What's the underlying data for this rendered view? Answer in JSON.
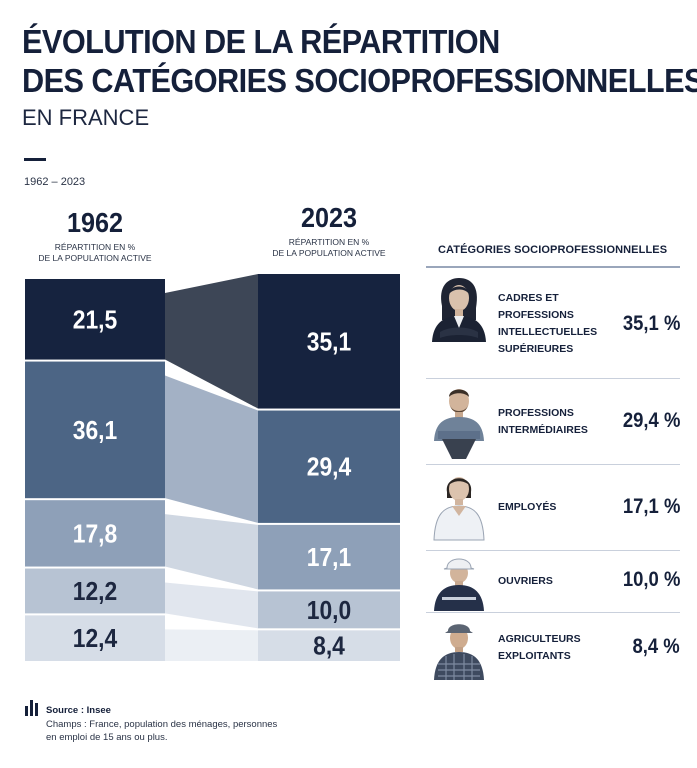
{
  "title": {
    "line1": "ÉVOLUTION DE LA RÉPARTITION",
    "line2": "DES CATÉGORIES SOCIOPROFESSIONNELLES",
    "subtitle": "EN FRANCE",
    "period": "1962 – 2023"
  },
  "columns": {
    "left": {
      "year": "1962",
      "sub1": "RÉPARTITION EN %",
      "sub2": "DE LA POPULATION ACTIVE"
    },
    "right": {
      "year": "2023",
      "sub1": "RÉPARTITION EN %",
      "sub2": "DE LA POPULATION ACTIVE"
    }
  },
  "chart_data": {
    "type": "bar",
    "stacked": true,
    "categories": [
      "1962",
      "2023"
    ],
    "series": [
      {
        "name": "Cadres et professions intellectuelles supérieures",
        "values": [
          21.5,
          35.1
        ],
        "labels": [
          "21,5",
          "35,1"
        ],
        "color": "#16233f",
        "ribbon": "#3d4656",
        "text_color": "#ffffff"
      },
      {
        "name": "Professions intermédiaires",
        "values": [
          36.1,
          29.4
        ],
        "labels": [
          "36,1",
          "29,4"
        ],
        "color": "#4c6585",
        "ribbon": "#a3b1c5",
        "text_color": "#ffffff"
      },
      {
        "name": "Employés",
        "values": [
          17.8,
          17.1
        ],
        "labels": [
          "17,8",
          "17,1"
        ],
        "color": "#8ea0b8",
        "ribbon": "#cfd7e2",
        "text_color": "#ffffff"
      },
      {
        "name": "Ouvriers",
        "values": [
          12.2,
          10.0
        ],
        "labels": [
          "12,2",
          "10,0"
        ],
        "color": "#b7c3d3",
        "ribbon": "#e1e6ee",
        "text_color": "#1d2740"
      },
      {
        "name": "Agriculteurs exploitants",
        "values": [
          12.4,
          8.4
        ],
        "labels": [
          "12,4",
          "8,4"
        ],
        "color": "#d6dde7",
        "ribbon": "#ebeff4",
        "text_color": "#1d2740"
      }
    ]
  },
  "legend": {
    "title": "CATÉGORIES SOCIOPROFESSIONNELLES",
    "items": [
      {
        "label": "CADRES ET PROFESSIONS INTELLECTUELLES SUPÉRIEURES",
        "pct": "35,1 %",
        "icon": "businesswoman-icon"
      },
      {
        "label": "PROFESSIONS INTERMÉDIAIRES",
        "pct": "29,4 %",
        "icon": "professional-man-icon"
      },
      {
        "label": "EMPLOYÉS",
        "pct": "17,1 %",
        "icon": "employee-woman-icon"
      },
      {
        "label": "OUVRIERS",
        "pct": "10,0 %",
        "icon": "construction-worker-icon"
      },
      {
        "label": "AGRICULTEURS EXPLOITANTS",
        "pct": "8,4 %",
        "icon": "farmer-icon"
      }
    ]
  },
  "source": {
    "label": "Source : Insee",
    "note": "Champs : France, population des ménages, personnes en emploi de 15 ans ou plus."
  }
}
